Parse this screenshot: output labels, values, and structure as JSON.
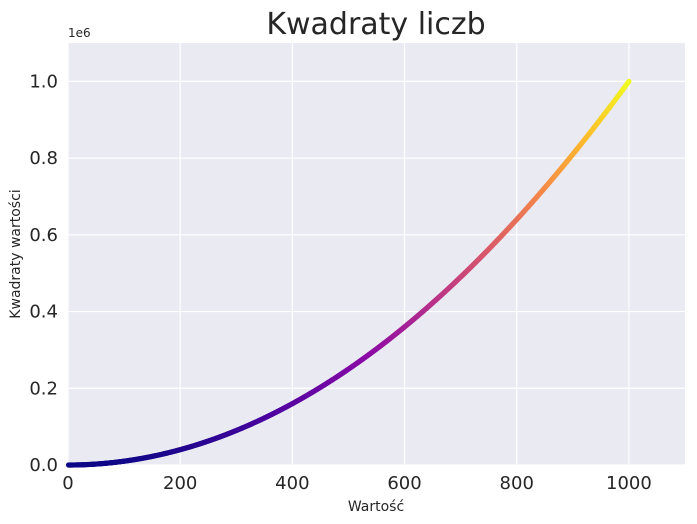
{
  "chart_data": {
    "type": "scatter",
    "title": "Kwadraty liczb",
    "xlabel": "Wartość",
    "ylabel": "Kwadraty wartości",
    "y_offset_label": "1e6",
    "xlim": [
      0,
      1100
    ],
    "ylim": [
      0,
      1.1
    ],
    "x_ticks": [
      0,
      200,
      400,
      600,
      800,
      1000
    ],
    "x_tick_labels": [
      "0",
      "200",
      "400",
      "600",
      "800",
      "1000"
    ],
    "y_ticks": [
      0,
      0.2,
      0.4,
      0.6,
      0.8,
      1.0
    ],
    "y_tick_labels": [
      "0.0",
      "0.2",
      "0.4",
      "0.6",
      "0.8",
      "1.0"
    ],
    "series": [
      {
        "function": "y = x^2",
        "x_start": 1,
        "x_end": 1000,
        "colormap": "plasma",
        "color_by": "y"
      }
    ],
    "grid": true,
    "colors": {
      "background": "#eaeaf2",
      "grid": "#ffffff"
    }
  }
}
